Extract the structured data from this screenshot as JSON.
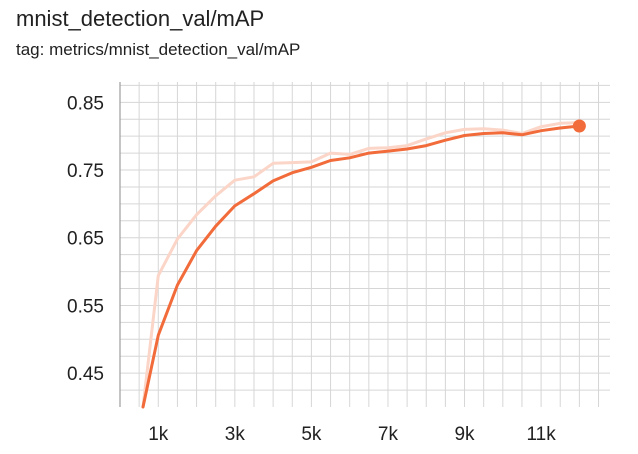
{
  "header": {
    "title": "mnist_detection_val/mAP",
    "tag": "tag: metrics/mnist_detection_val/mAP"
  },
  "colors": {
    "smoothed": "#f26b3a",
    "raw": "#fbd5c7",
    "grid": "#d6d6d6",
    "axis": "#9e9e9e"
  },
  "chart_data": {
    "type": "line",
    "title": "mnist_detection_val/mAP",
    "xlabel": "",
    "ylabel": "",
    "xlim": [
      0,
      12.8
    ],
    "ylim": [
      0.4,
      0.88
    ],
    "grid": true,
    "x_ticks": [
      {
        "value": 1,
        "label": "1k"
      },
      {
        "value": 3,
        "label": "3k"
      },
      {
        "value": 5,
        "label": "5k"
      },
      {
        "value": 7,
        "label": "7k"
      },
      {
        "value": 9,
        "label": "9k"
      },
      {
        "value": 11,
        "label": "11k"
      }
    ],
    "y_ticks": [
      {
        "value": 0.45,
        "label": "0.45"
      },
      {
        "value": 0.55,
        "label": "0.55"
      },
      {
        "value": 0.65,
        "label": "0.65"
      },
      {
        "value": 0.75,
        "label": "0.75"
      },
      {
        "value": 0.85,
        "label": "0.85"
      }
    ],
    "series": [
      {
        "role": "raw",
        "x": [
          0.6,
          1.0,
          1.5,
          2.0,
          2.5,
          3.0,
          3.5,
          4.0,
          4.5,
          5.0,
          5.5,
          6.0,
          6.5,
          7.0,
          7.5,
          8.0,
          8.5,
          9.0,
          9.5,
          10.0,
          10.5,
          11.0,
          11.5,
          12.0
        ],
        "y": [
          0.4,
          0.594,
          0.648,
          0.684,
          0.712,
          0.735,
          0.74,
          0.76,
          0.761,
          0.762,
          0.775,
          0.773,
          0.782,
          0.783,
          0.786,
          0.796,
          0.805,
          0.81,
          0.811,
          0.809,
          0.804,
          0.814,
          0.819,
          0.82
        ]
      },
      {
        "role": "smoothed",
        "x": [
          0.6,
          1.0,
          1.5,
          2.0,
          2.5,
          3.0,
          3.5,
          4.0,
          4.5,
          5.0,
          5.5,
          6.0,
          6.5,
          7.0,
          7.5,
          8.0,
          8.5,
          9.0,
          9.5,
          10.0,
          10.5,
          11.0,
          11.5,
          12.0
        ],
        "y": [
          0.4,
          0.506,
          0.58,
          0.631,
          0.667,
          0.697,
          0.715,
          0.734,
          0.746,
          0.754,
          0.764,
          0.768,
          0.775,
          0.778,
          0.781,
          0.786,
          0.794,
          0.801,
          0.804,
          0.805,
          0.802,
          0.808,
          0.812,
          0.815
        ]
      }
    ]
  }
}
